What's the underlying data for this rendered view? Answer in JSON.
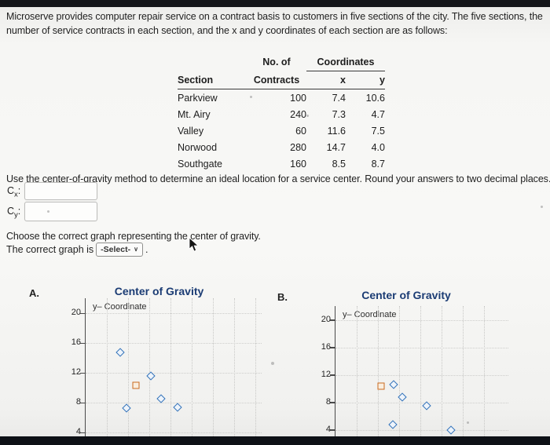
{
  "intro": {
    "line1": "Microserve provides computer repair service on a contract basis to customers in five sections of the city. The five sections, the",
    "line2": "number of service contracts in each section, and the x and y coordinates of each section are as follows:"
  },
  "table": {
    "header": {
      "no_of": "No. of",
      "contracts": "Contracts",
      "coordinates": "Coordinates",
      "section": "Section",
      "x": "x",
      "y": "y"
    },
    "rows": [
      {
        "section": "Parkview",
        "contracts": "100",
        "x": "7.4",
        "y": "10.6"
      },
      {
        "section": "Mt. Airy",
        "contracts": "240",
        "x": "7.3",
        "y": "4.7"
      },
      {
        "section": "Valley",
        "contracts": "60",
        "x": "11.6",
        "y": "7.5"
      },
      {
        "section": "Norwood",
        "contracts": "280",
        "x": "14.7",
        "y": "4.0"
      },
      {
        "section": "Southgate",
        "contracts": "160",
        "x": "8.5",
        "y": "8.7"
      }
    ]
  },
  "instruction": "Use the center-of-gravity method to determine an ideal location for a service center. Round your answers to two decimal places.",
  "fields": {
    "cx": {
      "base": "C",
      "sub": "x",
      "colon": ":",
      "value": ""
    },
    "cy": {
      "base": "C",
      "sub": "y",
      "colon": ":",
      "value": ""
    }
  },
  "choose_text": "Choose the correct graph representing the center of gravity.",
  "select_row": {
    "prefix": "The correct graph is",
    "select_label": "-Select-",
    "suffix": "."
  },
  "colors": {
    "title_navy": "#1b3c74",
    "point_blue": "#3071b9",
    "point_orange": "#c96b1f"
  },
  "chart_data": [
    {
      "panel_label": "A.",
      "type": "scatter",
      "title": "Center of Gravity",
      "ylabel": "y– Coordinate",
      "yticks": [
        20,
        16,
        12,
        8,
        4
      ],
      "xlim": [
        0,
        20
      ],
      "ylim": [
        0,
        22
      ],
      "grid": "dotted",
      "legend": "none",
      "series": [
        {
          "name": "sections",
          "marker": "diamond",
          "color": "#3071b9",
          "points": [
            [
              4.0,
              14.7
            ],
            [
              7.5,
              11.6
            ],
            [
              8.7,
              8.5
            ],
            [
              4.7,
              7.3
            ],
            [
              10.6,
              7.4
            ]
          ]
        },
        {
          "name": "center-of-gravity",
          "marker": "square",
          "color": "#c96b1f",
          "points": [
            [
              5.8,
              10.3
            ]
          ]
        }
      ]
    },
    {
      "panel_label": "B.",
      "type": "scatter",
      "title": "Center of Gravity",
      "ylabel": "y– Coordinate",
      "yticks": [
        20,
        16,
        12,
        8,
        4
      ],
      "xlim": [
        0,
        22
      ],
      "ylim": [
        0,
        22
      ],
      "grid": "dotted",
      "legend": "none",
      "series": [
        {
          "name": "sections",
          "marker": "diamond",
          "color": "#3071b9",
          "points": [
            [
              7.4,
              10.6
            ],
            [
              8.5,
              8.7
            ],
            [
              11.6,
              7.5
            ],
            [
              7.3,
              4.7
            ],
            [
              14.7,
              4.0
            ]
          ]
        },
        {
          "name": "center-of-gravity",
          "marker": "square",
          "color": "#c96b1f",
          "points": [
            [
              5.8,
              10.3
            ]
          ]
        }
      ]
    }
  ]
}
